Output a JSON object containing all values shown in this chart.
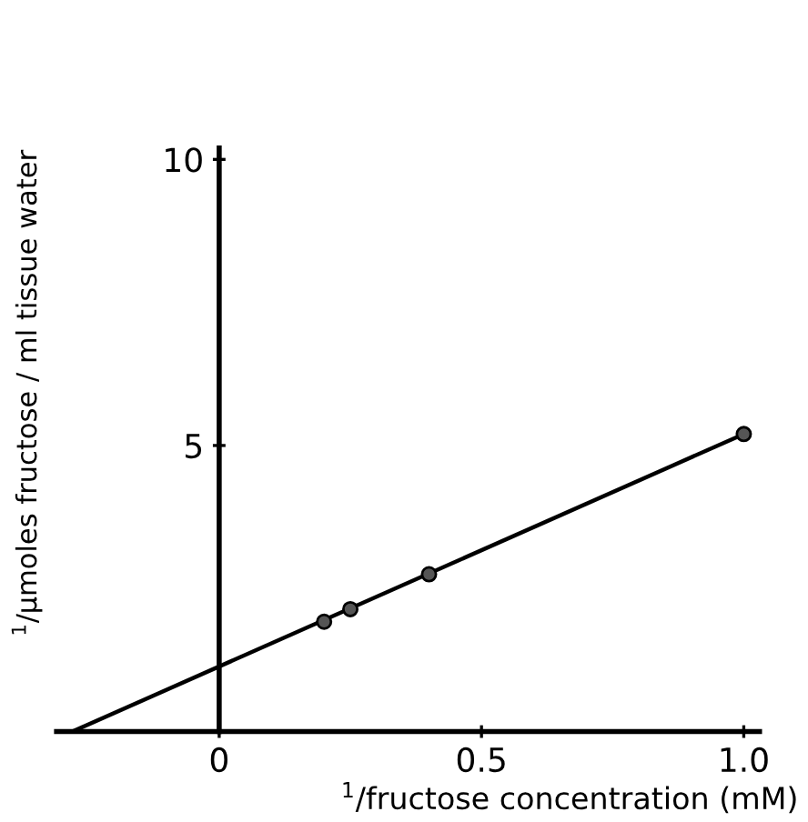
{
  "chart_data": {
    "type": "scatter",
    "xlabel": "$^{1}$/fructose concentration (mM)",
    "ylabel": "$^{1}$/µmoles fructose / ml tissue water",
    "series": [
      {
        "color": "#555555",
        "marker": "circle",
        "x": [
          0.2,
          0.25,
          0.4,
          1.0
        ],
        "values": [
          1.92,
          2.14,
          2.75,
          5.2
        ]
      },
      {
        "type": "line",
        "color": "#000000",
        "marker": "none",
        "line_style": "solid",
        "x": [
          -0.28,
          1.0
        ],
        "values": [
          0,
          5.2
        ]
      }
    ],
    "xlim": [
      -0.31,
      1.03
    ],
    "ylim": [
      0,
      10.2
    ],
    "xticks": [
      0,
      0.5,
      {
        "value": 1.0,
        "label": "1.0"
      }
    ],
    "yticks": [
      5,
      10
    ],
    "grid": false,
    "legend": false
  }
}
